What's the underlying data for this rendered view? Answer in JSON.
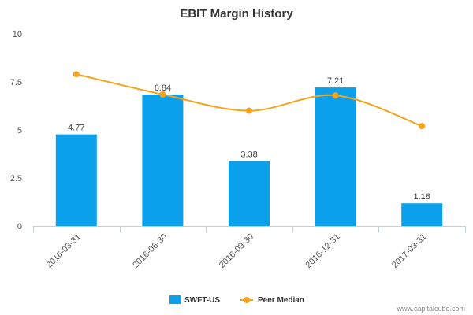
{
  "chart_data": {
    "type": "bar",
    "title": "EBIT Margin History",
    "categories": [
      "2016-03-31",
      "2016-06-30",
      "2016-09-30",
      "2016-12-31",
      "2017-03-31"
    ],
    "series": [
      {
        "name": "SWFT-US",
        "type": "bar",
        "values": [
          4.77,
          6.84,
          3.38,
          7.21,
          1.18
        ],
        "color": "#0AA0EB"
      },
      {
        "name": "Peer Median",
        "type": "line",
        "values": [
          7.9,
          6.85,
          6.0,
          6.8,
          5.2
        ],
        "color": "#F5A31A"
      }
    ],
    "data_labels": [
      "4.77",
      "6.84",
      "3.38",
      "7.21",
      "1.18"
    ],
    "y_ticks": [
      "0",
      "2.5",
      "5",
      "7.5",
      "10"
    ],
    "ylim": [
      0,
      10
    ],
    "grid": false,
    "legend_position": "bottom-center"
  },
  "watermark": "www.capitalcube.com"
}
